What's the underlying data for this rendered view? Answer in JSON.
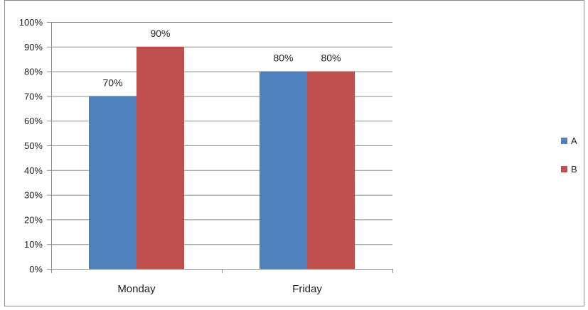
{
  "chart_data": {
    "type": "bar",
    "categories": [
      "Monday",
      "Friday"
    ],
    "series": [
      {
        "name": "A",
        "values": [
          70,
          80
        ],
        "color": "#4F81BD"
      },
      {
        "name": "B",
        "values": [
          90,
          80
        ],
        "color": "#C0504D"
      }
    ],
    "value_suffix": "%",
    "ylim": [
      0,
      100
    ],
    "y_ticks": [
      0,
      10,
      20,
      30,
      40,
      50,
      60,
      70,
      80,
      90,
      100
    ],
    "y_tick_labels": [
      "0%",
      "10%",
      "20%",
      "30%",
      "40%",
      "50%",
      "60%",
      "70%",
      "80%",
      "90%",
      "100%"
    ],
    "grid": true,
    "legend_position": "right",
    "data_labels": [
      [
        "70%",
        "80%"
      ],
      [
        "90%",
        "80%"
      ]
    ]
  }
}
